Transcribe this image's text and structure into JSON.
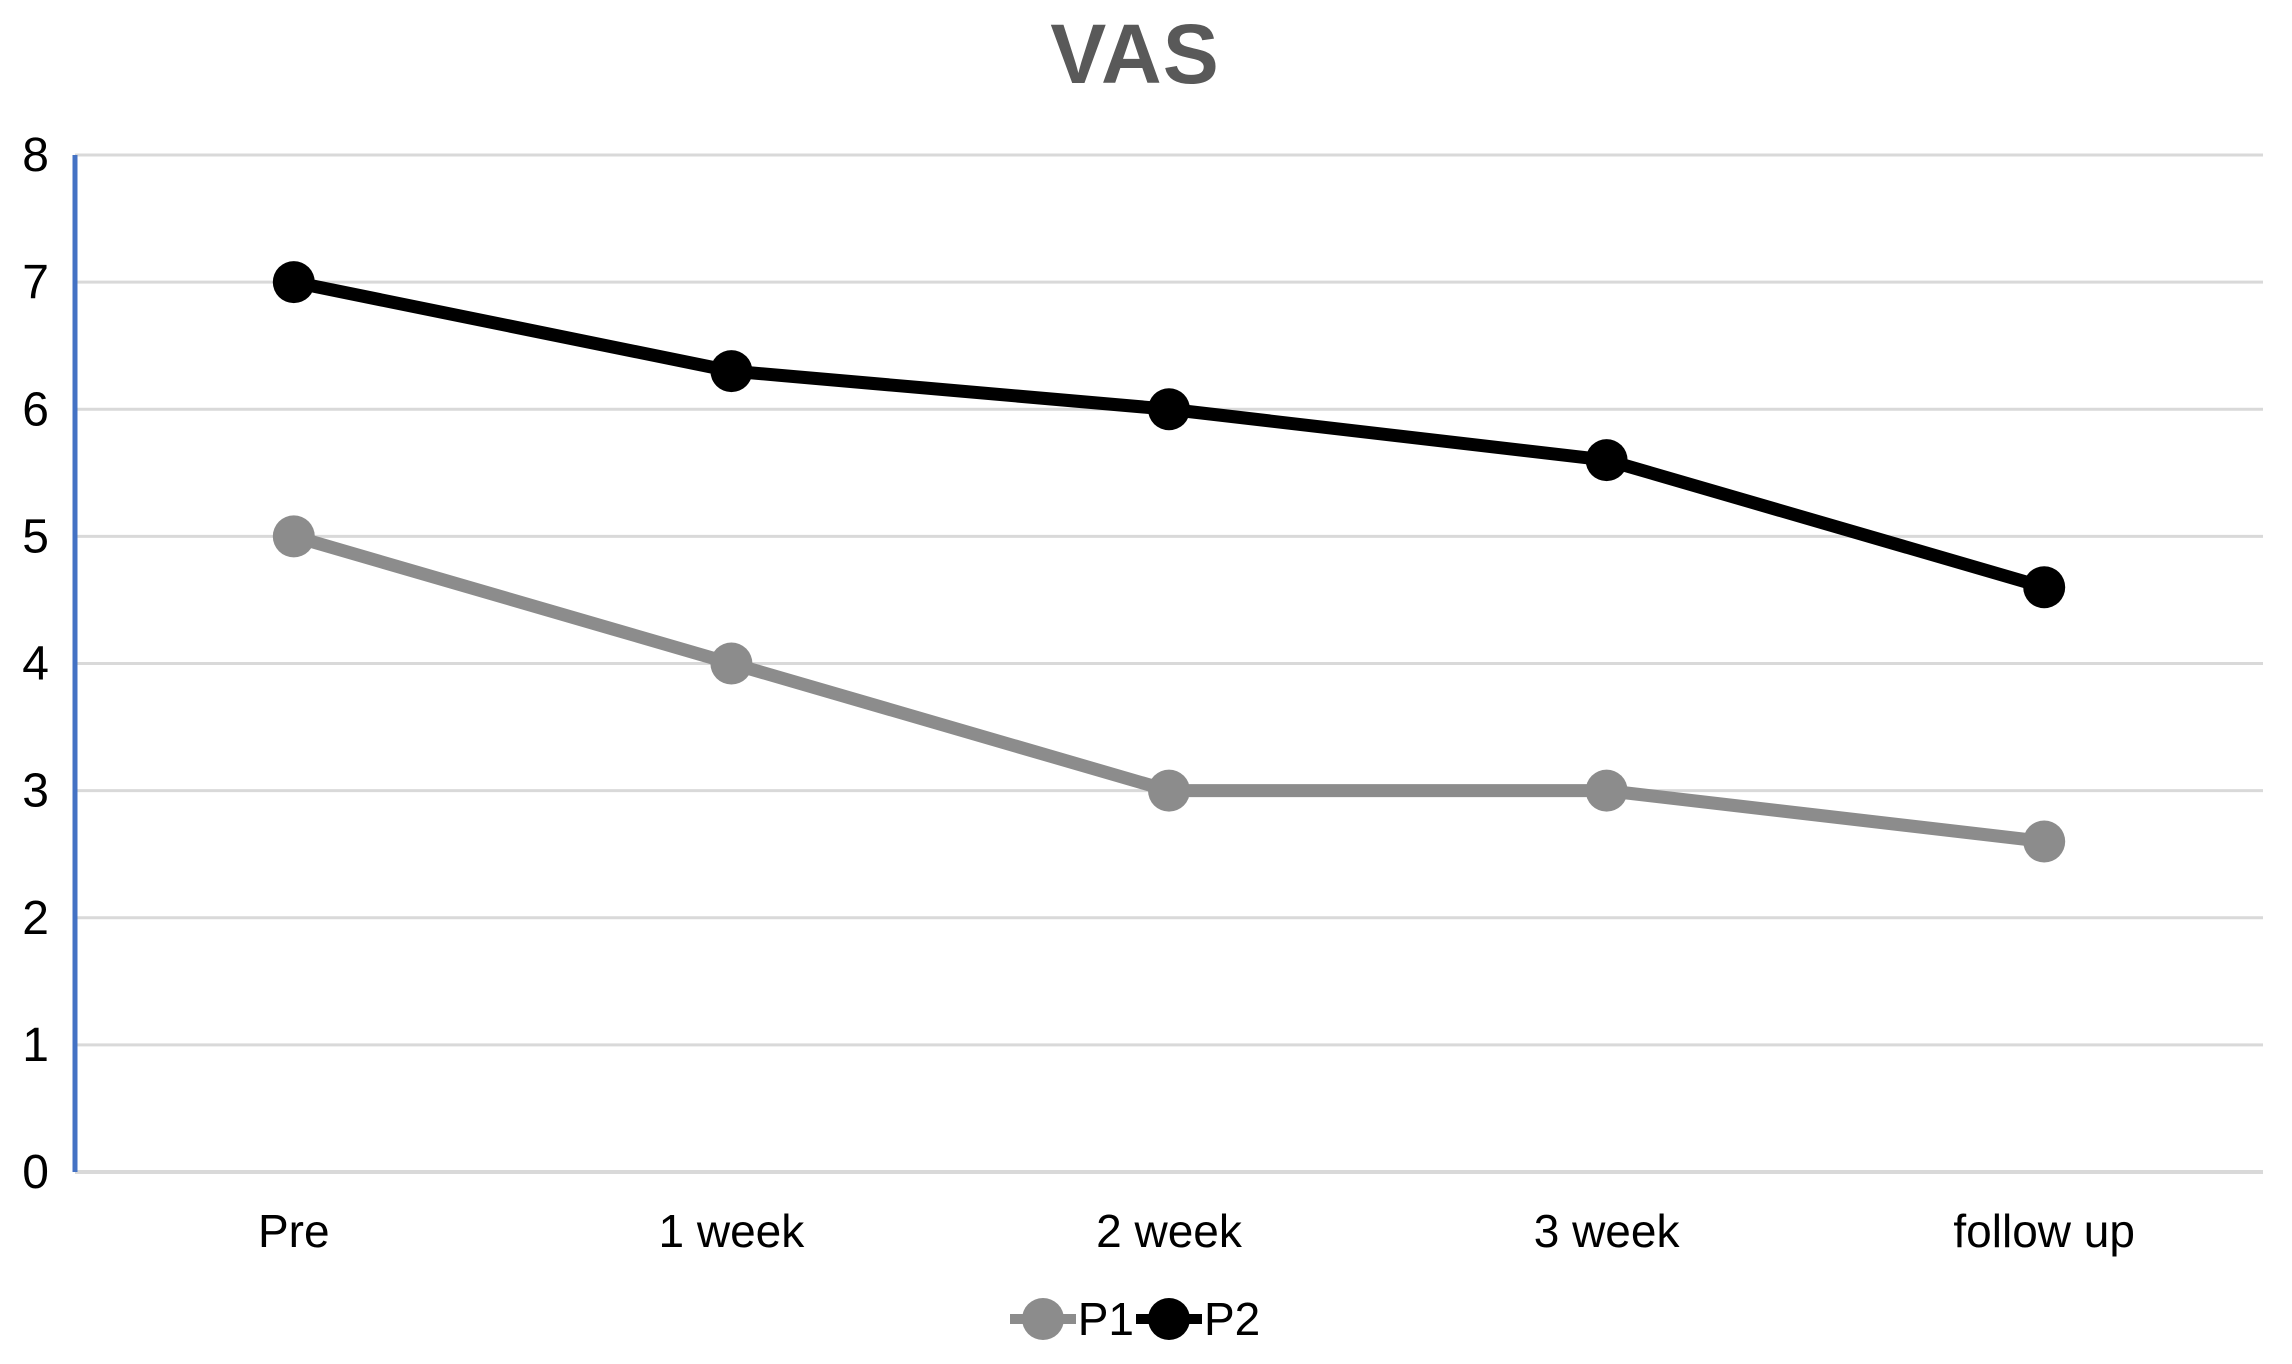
{
  "chart_data": {
    "type": "line",
    "title": "VAS",
    "categories": [
      "Pre",
      "1 week",
      "2 week",
      "3 week",
      "follow up"
    ],
    "series": [
      {
        "name": "P1",
        "color": "#8C8C8C",
        "values": [
          5,
          4,
          3,
          3,
          2.6
        ]
      },
      {
        "name": "P2",
        "color": "#000000",
        "values": [
          7,
          6.3,
          6,
          5.6,
          4.6
        ]
      }
    ],
    "xlabel": "",
    "ylabel": "",
    "ylim": [
      0,
      8
    ],
    "y_ticks": [
      0,
      1,
      2,
      3,
      4,
      5,
      6,
      7,
      8
    ],
    "grid": "horizontal",
    "legend_position": "bottom",
    "colors": {
      "axis_line": "#4472C4",
      "gridline": "#D9D9D9",
      "title": "#595959",
      "tick_label": "#000000"
    }
  }
}
